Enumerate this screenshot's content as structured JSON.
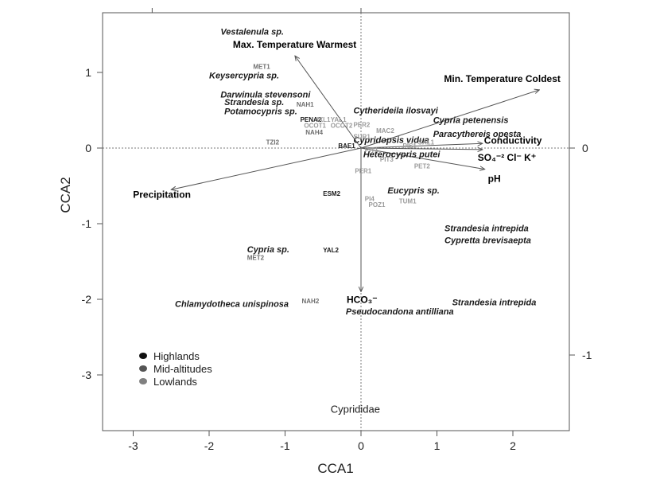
{
  "chart_data": {
    "type": "scatter",
    "xlabel": "CCA1",
    "ylabel": "CCA2",
    "xlim": [
      -3.45,
      2.75
    ],
    "ylim": [
      -3.75,
      1.8
    ],
    "x_ticks": [
      -3,
      -2,
      -1,
      0,
      1,
      2
    ],
    "x_tick_labels": [
      "-3",
      "-2",
      "-1",
      "0",
      "1",
      "2"
    ],
    "y_ticks": [
      1,
      0,
      -1,
      -2,
      -3
    ],
    "y_tick_labels": [
      "1",
      "0",
      "-1",
      "-2",
      "-3"
    ],
    "right_ticks": [
      0,
      -1
    ],
    "right_tick_labels": [
      "0",
      "-1"
    ],
    "zero_lines": true,
    "grid": false,
    "legend_position": "bottom-left",
    "colors": {
      "Highlands": "#111111",
      "Mid-altitudes": "#555555",
      "Lowlands": "#808080",
      "arrow": "#555555",
      "frame": "#555555"
    },
    "environmental_vectors": [
      {
        "label": "Max. Temperature Warmest",
        "x": -0.87,
        "y": 1.22
      },
      {
        "label": "Min. Temperature Coldest",
        "x": 2.35,
        "y": 0.77
      },
      {
        "label": "Conductivity",
        "x": 1.6,
        "y": 0.06
      },
      {
        "label": "SO₄⁻² Cl⁻ K⁺",
        "x": 1.6,
        "y": -0.02
      },
      {
        "label": "pH",
        "x": 1.63,
        "y": -0.28
      },
      {
        "label": "Precipitation",
        "x": -2.5,
        "y": -0.55
      },
      {
        "label": "HCO₃⁻",
        "x": 0.0,
        "y": -1.9
      }
    ],
    "species": [
      {
        "label": "Vestalenula sp.",
        "x": -1.85,
        "y": 1.5
      },
      {
        "label": "Keysercypria sp.",
        "x": -2.0,
        "y": 0.92
      },
      {
        "label": "Darwinula stevensoni",
        "x": -1.85,
        "y": 0.67
      },
      {
        "label": "Strandesia sp.",
        "x": -1.8,
        "y": 0.57
      },
      {
        "label": "Potamocypris sp.",
        "x": -1.8,
        "y": 0.45
      },
      {
        "label": "Cytherideila ilosvayi",
        "x": -0.1,
        "y": 0.46
      },
      {
        "label": "Cypria petenensis",
        "x": 0.95,
        "y": 0.33
      },
      {
        "label": "Paracythereis opesta",
        "x": 0.95,
        "y": 0.15
      },
      {
        "label": "Cypridopsis vidua",
        "x": -0.1,
        "y": 0.07
      },
      {
        "label": "Heterocypris putei",
        "x": 0.03,
        "y": -0.12
      },
      {
        "label": "Eucypris sp.",
        "x": 0.35,
        "y": -0.6
      },
      {
        "label": "Strandesia intrepida",
        "x": 1.1,
        "y": -1.1
      },
      {
        "label": "Cypretta brevisaepta",
        "x": 1.1,
        "y": -1.26
      },
      {
        "label": "Cypria sp.",
        "x": -1.5,
        "y": -1.38
      },
      {
        "label": "Chlamydotheca unispinosa",
        "x": -2.45,
        "y": -2.1
      },
      {
        "label": "Pseudocandona antilliana",
        "x": -0.2,
        "y": -2.2
      },
      {
        "label": "Strandesia intrepida",
        "x": 1.2,
        "y": -2.08
      }
    ],
    "sites": [
      {
        "label": "MET1",
        "x": -1.42,
        "y": 1.05,
        "group": "Mid-altitudes"
      },
      {
        "label": "NAH1",
        "x": -0.85,
        "y": 0.55,
        "group": "Mid-altitudes"
      },
      {
        "label": "PENA2",
        "x": -0.8,
        "y": 0.35,
        "group": "Highlands"
      },
      {
        "label": "IXL1",
        "x": -0.58,
        "y": 0.35,
        "group": "Lowlands"
      },
      {
        "label": "YAL1",
        "x": -0.4,
        "y": 0.35,
        "group": "Lowlands"
      },
      {
        "label": "OCOT1",
        "x": -0.75,
        "y": 0.27,
        "group": "Lowlands"
      },
      {
        "label": "OCOT2",
        "x": -0.4,
        "y": 0.27,
        "group": "Lowlands"
      },
      {
        "label": "NAH4",
        "x": -0.73,
        "y": 0.18,
        "group": "Mid-altitudes"
      },
      {
        "label": "PER2",
        "x": -0.1,
        "y": 0.28,
        "group": "Lowlands"
      },
      {
        "label": "MAC2",
        "x": 0.2,
        "y": 0.2,
        "group": "Lowlands"
      },
      {
        "label": "SUR1",
        "x": -0.1,
        "y": 0.12,
        "group": "Lowlands"
      },
      {
        "label": "TZI2",
        "x": -1.25,
        "y": 0.05,
        "group": "Mid-altitudes"
      },
      {
        "label": "BAE1",
        "x": -0.3,
        "y": 0.0,
        "group": "Highlands"
      },
      {
        "label": "PIT1",
        "x": 0.05,
        "y": -0.05,
        "group": "Lowlands"
      },
      {
        "label": "PIT3",
        "x": 0.25,
        "y": -0.18,
        "group": "Lowlands"
      },
      {
        "label": "PIS1",
        "x": 0.55,
        "y": 0.0,
        "group": "Lowlands"
      },
      {
        "label": "SAL1",
        "x": 0.75,
        "y": 0.05,
        "group": "Lowlands"
      },
      {
        "label": "PET2",
        "x": 0.7,
        "y": -0.27,
        "group": "Lowlands"
      },
      {
        "label": "PER1",
        "x": -0.08,
        "y": -0.33,
        "group": "Lowlands"
      },
      {
        "label": "ESM2",
        "x": -0.5,
        "y": -0.63,
        "group": "Highlands"
      },
      {
        "label": "PI4",
        "x": 0.05,
        "y": -0.7,
        "group": "Lowlands"
      },
      {
        "label": "TUM1",
        "x": 0.5,
        "y": -0.73,
        "group": "Lowlands"
      },
      {
        "label": "POZ1",
        "x": 0.1,
        "y": -0.78,
        "group": "Lowlands"
      },
      {
        "label": "YAL2",
        "x": -0.5,
        "y": -1.38,
        "group": "Highlands"
      },
      {
        "label": "MET2",
        "x": -1.5,
        "y": -1.48,
        "group": "Mid-altitudes"
      },
      {
        "label": "NAH2",
        "x": -0.78,
        "y": -2.05,
        "group": "Mid-altitudes"
      }
    ],
    "family_label": {
      "label": "Cyprididae",
      "x": -0.4,
      "y": -3.5
    },
    "legend": [
      {
        "label": "Highlands",
        "color": "#111111"
      },
      {
        "label": "Mid-altitudes",
        "color": "#555555"
      },
      {
        "label": "Lowlands",
        "color": "#808080"
      }
    ]
  }
}
